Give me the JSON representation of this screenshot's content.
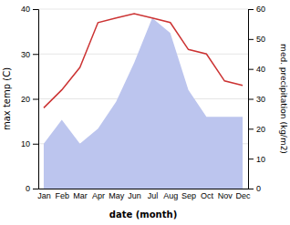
{
  "chart_data": {
    "type": "line",
    "categories": [
      "Jan",
      "Feb",
      "Mar",
      "Apr",
      "May",
      "Jun",
      "Jul",
      "Aug",
      "Sep",
      "Oct",
      "Nov",
      "Dec"
    ],
    "series": [
      {
        "type": "area",
        "axis": "y2",
        "color": "#bcc5ee",
        "values": [
          15,
          23,
          15,
          20,
          29,
          42,
          57,
          52,
          33,
          24,
          24,
          24
        ]
      },
      {
        "type": "line",
        "color": "#cc3333",
        "values": [
          18,
          22,
          27,
          37,
          38,
          39,
          38,
          37,
          31,
          30,
          24,
          23
        ]
      }
    ],
    "xlabel": "date (month)",
    "ylabel": "max temp (C)",
    "y2label": "med. precipitation (kg/m2)",
    "ylim": [
      0,
      40
    ],
    "yticks": [
      0,
      10,
      20,
      30,
      40
    ],
    "y2lim": [
      0,
      60
    ],
    "y2ticks": [
      0,
      10,
      20,
      30,
      40,
      50,
      60
    ],
    "grid": true
  }
}
